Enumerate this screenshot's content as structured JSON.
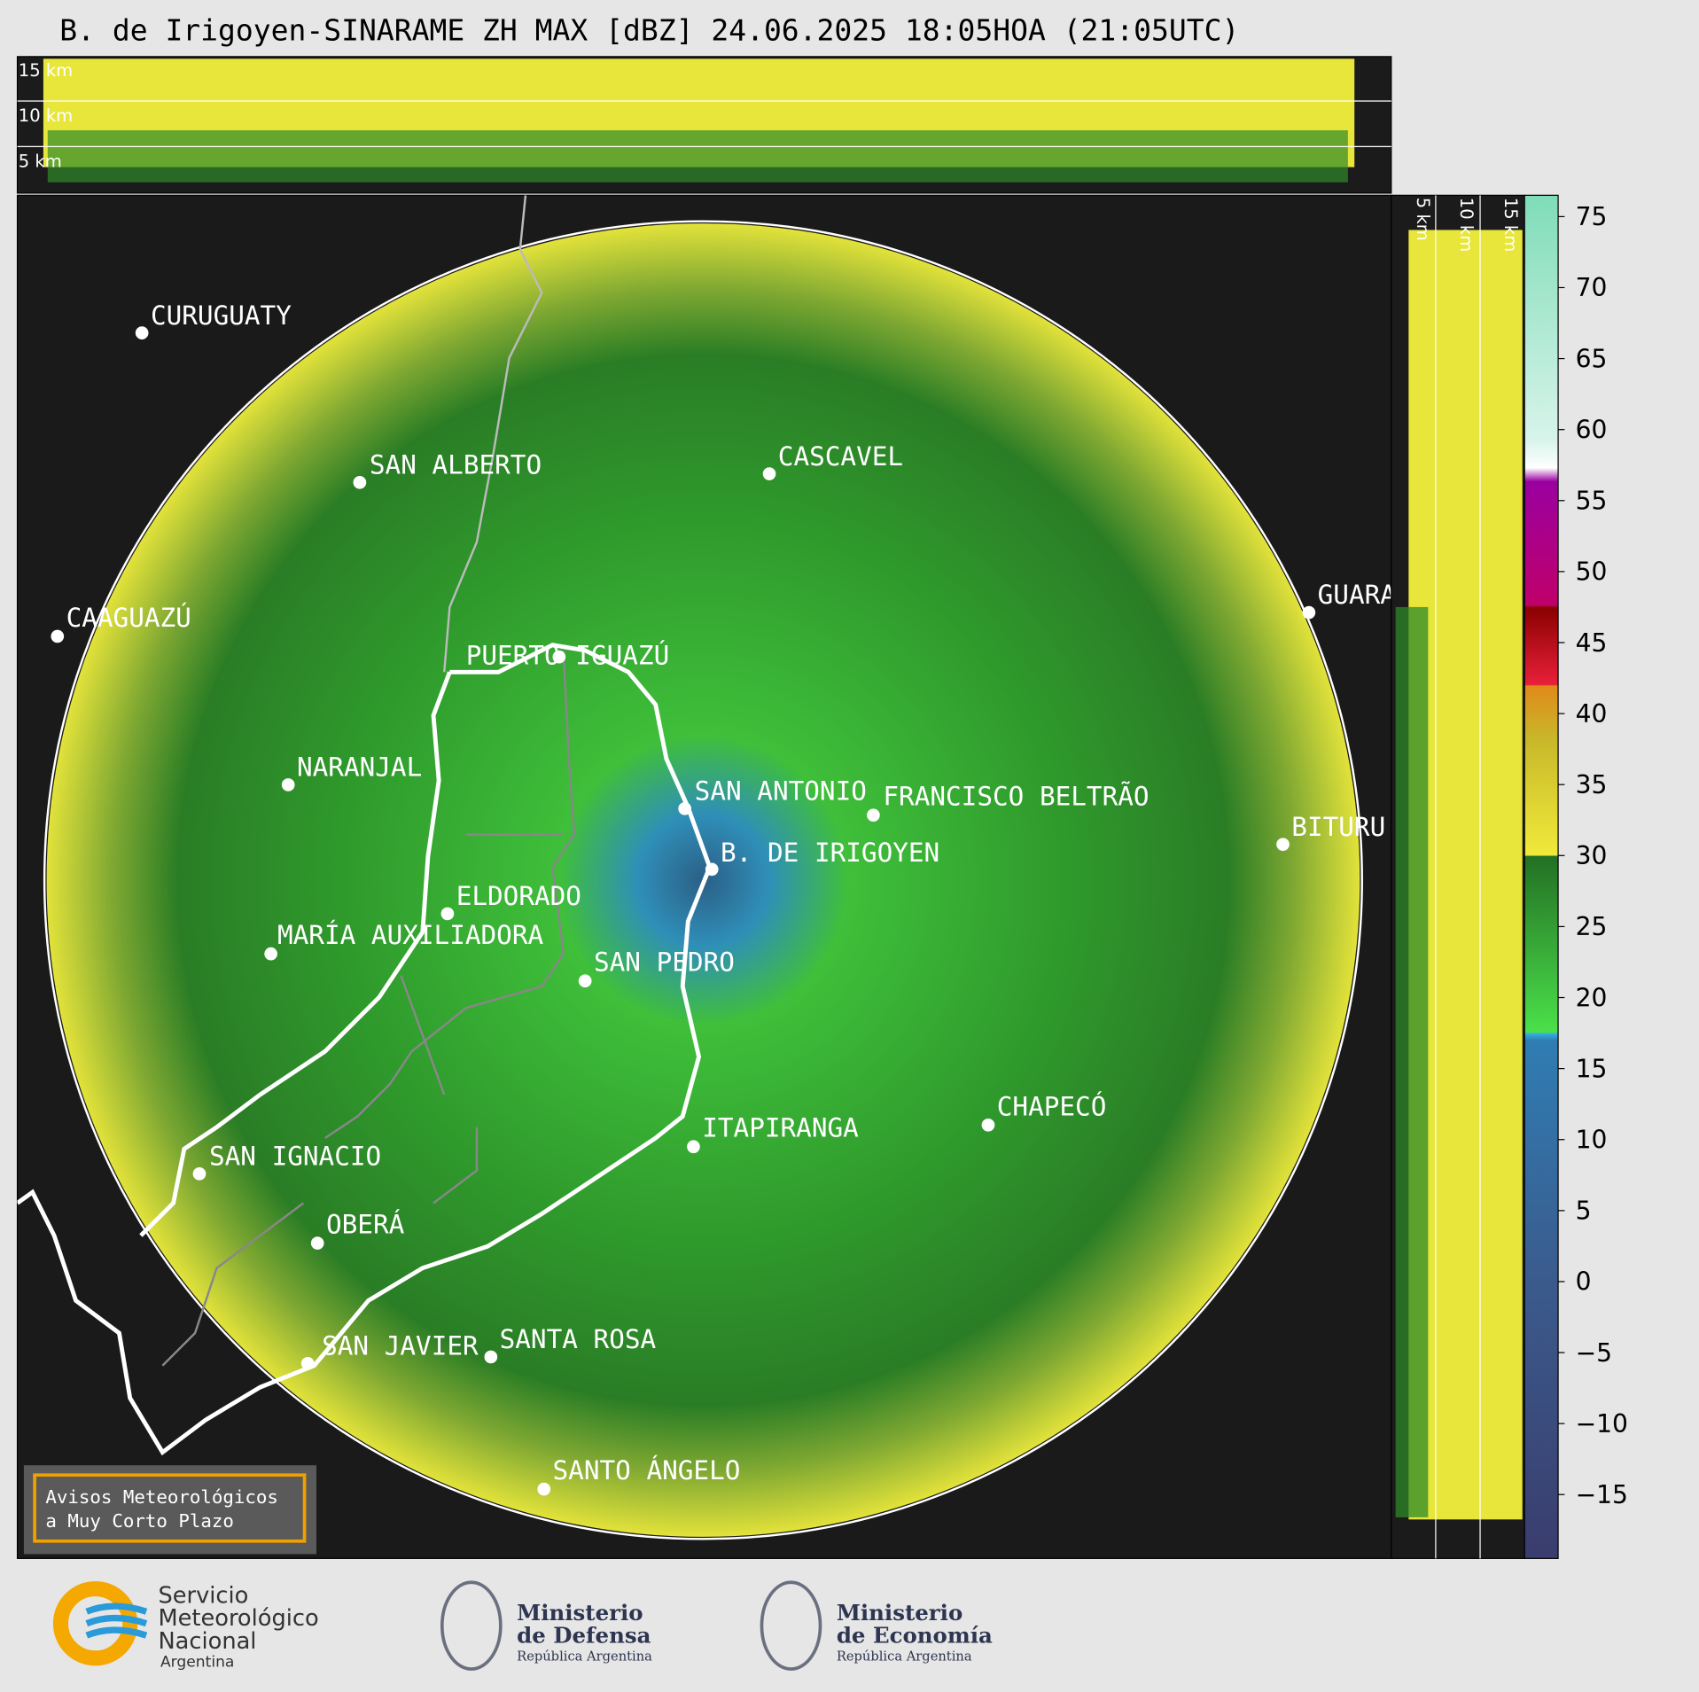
{
  "header": {
    "title": "B. de Irigoyen-SINARAME ZH MAX [dBZ] 24.06.2025 18:05HOA (21:05UTC)"
  },
  "top_panel": {
    "labels": [
      "15 km",
      "10 km",
      "5 km"
    ]
  },
  "side_panel": {
    "labels": [
      "5 km",
      "10 km",
      "15 km"
    ]
  },
  "cities": [
    {
      "label": "CURUGUATY"
    },
    {
      "label": "SAN ALBERTO"
    },
    {
      "label": "CASCAVEL"
    },
    {
      "label": "CAAGUAZÚ"
    },
    {
      "label": "GUARA"
    },
    {
      "label": "PUERTO IGUAZÚ"
    },
    {
      "label": "NARANJAL"
    },
    {
      "label": "SAN ANTONIO"
    },
    {
      "label": "FRANCISCO BELTRÃO"
    },
    {
      "label": "BITURU"
    },
    {
      "label": "B. DE IRIGOYEN"
    },
    {
      "label": "ELDORADO"
    },
    {
      "label": "MARÍA AUXILIADORA"
    },
    {
      "label": "SAN PEDRO"
    },
    {
      "label": "CHAPECÓ"
    },
    {
      "label": "ITAPIRANGA"
    },
    {
      "label": "SAN IGNACIO"
    },
    {
      "label": "OBERÁ"
    },
    {
      "label": "SAN JAVIER"
    },
    {
      "label": "SANTA ROSA"
    },
    {
      "label": "SANTO ÁNGELO"
    }
  ],
  "colorbar": {
    "lim": [
      -19.5,
      76.5
    ],
    "ticks": [
      {
        "value": 75,
        "label": "75"
      },
      {
        "value": 70,
        "label": "70"
      },
      {
        "value": 65,
        "label": "65"
      },
      {
        "value": 60,
        "label": "60"
      },
      {
        "value": 55,
        "label": "55"
      },
      {
        "value": 50,
        "label": "50"
      },
      {
        "value": 45,
        "label": "45"
      },
      {
        "value": 40,
        "label": "40"
      },
      {
        "value": 35,
        "label": "35"
      },
      {
        "value": 30,
        "label": "30"
      },
      {
        "value": 25,
        "label": "25"
      },
      {
        "value": 20,
        "label": "20"
      },
      {
        "value": 15,
        "label": "15"
      },
      {
        "value": 10,
        "label": "10"
      },
      {
        "value": 5,
        "label": "5"
      },
      {
        "value": 0,
        "label": "0"
      },
      {
        "value": -5,
        "label": "−5"
      },
      {
        "value": -10,
        "label": "−10"
      },
      {
        "value": -15,
        "label": "−15"
      }
    ]
  },
  "notice": {
    "lines": [
      "Avisos Meteorológicos",
      "a Muy Corto Plazo"
    ]
  },
  "logos": {
    "smn": [
      "Servicio",
      "Meteorológico",
      "Nacional",
      "Argentina"
    ],
    "defensa": [
      "Ministerio",
      "de Defensa",
      "República Argentina"
    ],
    "economia": [
      "Ministerio",
      "de Economía",
      "República Argentina"
    ]
  }
}
